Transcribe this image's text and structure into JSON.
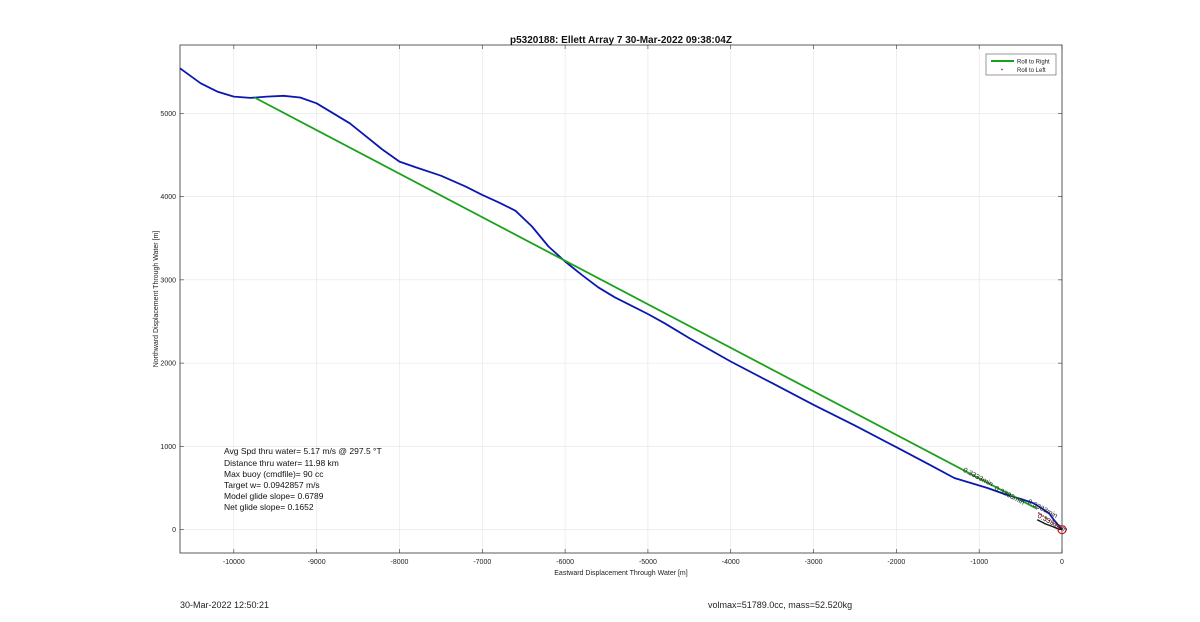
{
  "chart_data": {
    "type": "line",
    "title": "p5320188: Ellett Array 7 30-Mar-2022 09:38:04Z",
    "xlabel": "Eastward Displacement Through Water [m]",
    "ylabel": "Northward Displacement Through Water [m]",
    "xlim": [
      -10650,
      0
    ],
    "ylim": [
      -280,
      5820
    ],
    "xticks": [
      -10000,
      -9000,
      -8000,
      -7000,
      -6000,
      -5000,
      -4000,
      -3000,
      -2000,
      -1000,
      0
    ],
    "yticks": [
      0,
      1000,
      2000,
      3000,
      4000,
      5000
    ],
    "grid": true,
    "legend": {
      "position": "top-right",
      "entries": [
        {
          "name": "Roll to Right",
          "color": "#1aa01a",
          "marker": "line"
        },
        {
          "name": "Roll to Left",
          "color": "#cc2020",
          "marker": "dot"
        }
      ]
    },
    "series": [
      {
        "color": "#0a18b0",
        "x": [
          -10650,
          -10400,
          -10200,
          -10000,
          -9800,
          -9600,
          -9400,
          -9200,
          -9000,
          -8800,
          -8600,
          -8400,
          -8200,
          -8000,
          -7800,
          -7500,
          -7200,
          -7000,
          -6800,
          -6600,
          -6400,
          -6200,
          -6000,
          -5800,
          -5600,
          -5400,
          -5200,
          -5000,
          -4800,
          -4500,
          -4000,
          -3500,
          -3000,
          -2500,
          -2000,
          -1600,
          -1300,
          -1100,
          -900,
          -700,
          -500,
          -350,
          -250,
          -150,
          -100,
          -50,
          0
        ],
        "y": [
          5540,
          5360,
          5260,
          5200,
          5185,
          5200,
          5210,
          5190,
          5120,
          5000,
          4880,
          4720,
          4560,
          4420,
          4350,
          4250,
          4120,
          4020,
          3930,
          3830,
          3640,
          3400,
          3220,
          3060,
          2910,
          2790,
          2690,
          2590,
          2480,
          2300,
          2020,
          1760,
          1500,
          1250,
          990,
          780,
          620,
          560,
          500,
          430,
          370,
          320,
          260,
          190,
          120,
          60,
          0
        ]
      },
      {
        "color": "#1aa01a",
        "x": [
          -9750,
          -300
        ],
        "y": [
          5190,
          250
        ]
      }
    ],
    "annotations": [
      {
        "text": "Avg Spd thru water=  5.17 m/s @ 297.5 °T"
      },
      {
        "text": "Distance thru water= 11.98 km"
      },
      {
        "text": "Max buoy (cmdfile)= 90 cc"
      },
      {
        "text": "Target w= 0.0942857 m/s"
      },
      {
        "text": "Model glide slope= 0.6789"
      },
      {
        "text": "Net glide slope= 0.1652"
      }
    ],
    "track_labels": [
      {
        "text": "0.3333min",
        "x": -1200,
        "y": 700
      },
      {
        "text": "0.3333min",
        "x": -820,
        "y": 480
      },
      {
        "text": "0.3333min",
        "x": -420,
        "y": 320
      },
      {
        "text": "0.3333min",
        "x": -300,
        "y": 150
      }
    ]
  },
  "footer": {
    "timestamp": "30-Mar-2022 12:50:21",
    "specs": "volmax=51789.0cc, mass=52.520kg"
  }
}
